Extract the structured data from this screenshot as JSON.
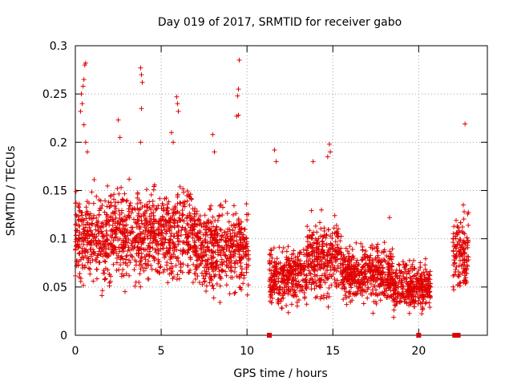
{
  "chart_data": {
    "type": "scatter",
    "title": "Day 019 of 2017, SRMTID for receiver gabo",
    "xlabel": "GPS time / hours",
    "ylabel": "SRMTID / TECUs",
    "xlim": [
      0,
      24
    ],
    "ylim": [
      0,
      0.3
    ],
    "grid": true,
    "marker": "+",
    "color": "#e00000",
    "x_ticks": [
      0,
      5,
      10,
      15,
      20
    ],
    "x_tick_labels": [
      "0",
      "5",
      "10",
      "15",
      "20"
    ],
    "y_ticks": [
      0,
      0.05,
      0.1,
      0.15,
      0.2,
      0.25,
      0.3
    ],
    "y_tick_labels": [
      "0",
      "0.05",
      "0.1",
      "0.15",
      "0.2",
      "0.25",
      "0.3"
    ],
    "segments": [
      {
        "x_start": 0.0,
        "x_end": 2.0,
        "y_center": 0.1,
        "y_spread": 0.045
      },
      {
        "x_start": 2.0,
        "x_end": 4.5,
        "y_center": 0.105,
        "y_spread": 0.045
      },
      {
        "x_start": 4.5,
        "x_end": 7.0,
        "y_center": 0.105,
        "y_spread": 0.05
      },
      {
        "x_start": 7.0,
        "x_end": 10.1,
        "y_center": 0.09,
        "y_spread": 0.045
      },
      {
        "x_start": 11.3,
        "x_end": 13.5,
        "y_center": 0.06,
        "y_spread": 0.03
      },
      {
        "x_start": 13.5,
        "x_end": 15.5,
        "y_center": 0.08,
        "y_spread": 0.04
      },
      {
        "x_start": 15.5,
        "x_end": 18.5,
        "y_center": 0.065,
        "y_spread": 0.03
      },
      {
        "x_start": 18.5,
        "x_end": 20.7,
        "y_center": 0.05,
        "y_spread": 0.025
      },
      {
        "x_start": 22.0,
        "x_end": 22.9,
        "y_center": 0.085,
        "y_spread": 0.04
      }
    ],
    "outliers": [
      {
        "x": 0.6,
        "y": 0.282
      },
      {
        "x": 0.55,
        "y": 0.28
      },
      {
        "x": 0.5,
        "y": 0.265
      },
      {
        "x": 0.45,
        "y": 0.258
      },
      {
        "x": 0.35,
        "y": 0.25
      },
      {
        "x": 0.4,
        "y": 0.24
      },
      {
        "x": 0.3,
        "y": 0.232
      },
      {
        "x": 0.5,
        "y": 0.218
      },
      {
        "x": 0.6,
        "y": 0.2
      },
      {
        "x": 0.7,
        "y": 0.19
      },
      {
        "x": 2.5,
        "y": 0.223
      },
      {
        "x": 2.6,
        "y": 0.205
      },
      {
        "x": 3.8,
        "y": 0.277
      },
      {
        "x": 3.85,
        "y": 0.27
      },
      {
        "x": 3.9,
        "y": 0.262
      },
      {
        "x": 3.85,
        "y": 0.235
      },
      {
        "x": 3.8,
        "y": 0.2
      },
      {
        "x": 5.9,
        "y": 0.247
      },
      {
        "x": 5.95,
        "y": 0.24
      },
      {
        "x": 6.0,
        "y": 0.232
      },
      {
        "x": 5.6,
        "y": 0.21
      },
      {
        "x": 5.7,
        "y": 0.2
      },
      {
        "x": 8.0,
        "y": 0.208
      },
      {
        "x": 8.1,
        "y": 0.19
      },
      {
        "x": 9.55,
        "y": 0.285
      },
      {
        "x": 9.5,
        "y": 0.255
      },
      {
        "x": 9.45,
        "y": 0.248
      },
      {
        "x": 9.5,
        "y": 0.228
      },
      {
        "x": 9.4,
        "y": 0.227
      },
      {
        "x": 11.6,
        "y": 0.192
      },
      {
        "x": 11.7,
        "y": 0.18
      },
      {
        "x": 13.85,
        "y": 0.18
      },
      {
        "x": 14.8,
        "y": 0.198
      },
      {
        "x": 14.85,
        "y": 0.19
      },
      {
        "x": 14.7,
        "y": 0.185
      },
      {
        "x": 18.3,
        "y": 0.122
      },
      {
        "x": 22.7,
        "y": 0.219
      },
      {
        "x": 22.6,
        "y": 0.135
      },
      {
        "x": 22.65,
        "y": 0.128
      }
    ],
    "zero_markers": [
      11.3,
      20.0,
      22.1,
      22.3
    ],
    "seed": 20170119
  }
}
